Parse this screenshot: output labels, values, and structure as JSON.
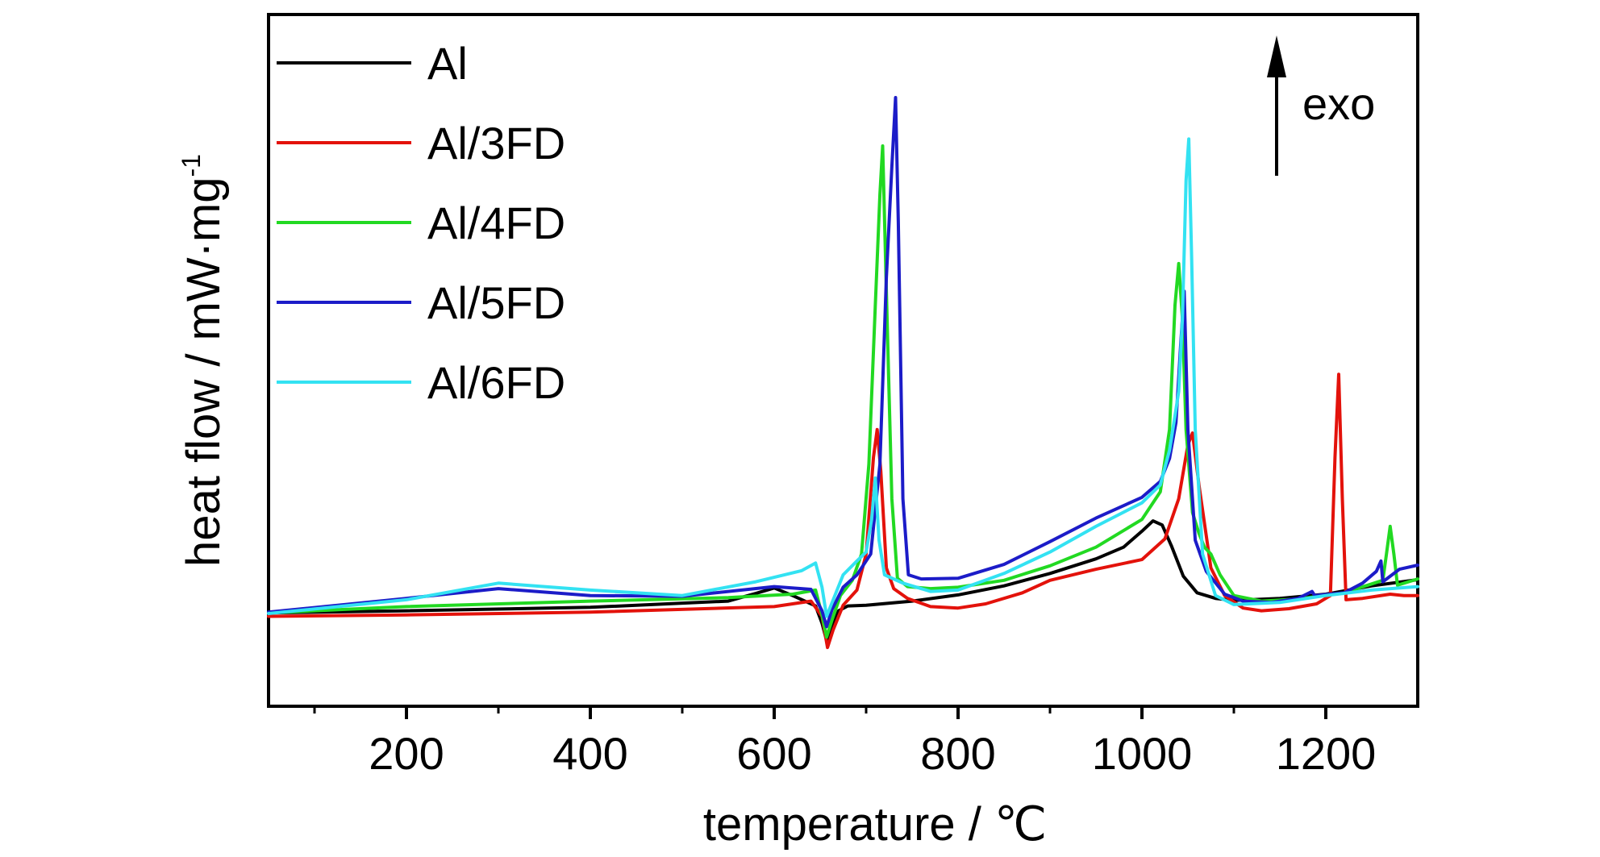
{
  "chart_data": {
    "type": "line",
    "title": "",
    "xlabel": "temperature / ℃",
    "ylabel": "heat flow / mW·mg",
    "ylabel_superscript": "-1",
    "xlim": [
      50,
      1300
    ],
    "ylim": [
      0,
      100
    ],
    "x_ticks": [
      200,
      400,
      600,
      800,
      1000,
      1200
    ],
    "x_tick_labels": [
      "200",
      "400",
      "600",
      "800",
      "1000",
      "1200"
    ],
    "x_minor_ticks": [
      100,
      300,
      500,
      700,
      900,
      1100
    ],
    "y_ticks_visible": false,
    "grid": false,
    "legend_position": "top-left",
    "annotation": {
      "text": "exo",
      "arrow": "up"
    },
    "series": [
      {
        "name": "Al",
        "color": "#000000",
        "points": [
          [
            50,
            13.5
          ],
          [
            200,
            13.8
          ],
          [
            400,
            14.3
          ],
          [
            550,
            15.2
          ],
          [
            580,
            16.3
          ],
          [
            600,
            17.1
          ],
          [
            620,
            16.0
          ],
          [
            645,
            14.5
          ],
          [
            652,
            12.0
          ],
          [
            657,
            9.5
          ],
          [
            662,
            11.0
          ],
          [
            670,
            13.8
          ],
          [
            680,
            14.5
          ],
          [
            700,
            14.6
          ],
          [
            750,
            15.2
          ],
          [
            800,
            16.1
          ],
          [
            850,
            17.4
          ],
          [
            900,
            19.2
          ],
          [
            950,
            21.3
          ],
          [
            980,
            23.0
          ],
          [
            1000,
            25.3
          ],
          [
            1012,
            26.8
          ],
          [
            1022,
            26.2
          ],
          [
            1032,
            23.2
          ],
          [
            1045,
            18.8
          ],
          [
            1060,
            16.4
          ],
          [
            1080,
            15.6
          ],
          [
            1100,
            15.3
          ],
          [
            1150,
            15.6
          ],
          [
            1200,
            16.2
          ],
          [
            1250,
            17.4
          ],
          [
            1300,
            18.3
          ]
        ]
      },
      {
        "name": "Al/3FD",
        "color": "#e3120b",
        "points": [
          [
            50,
            13.0
          ],
          [
            200,
            13.2
          ],
          [
            400,
            13.6
          ],
          [
            600,
            14.4
          ],
          [
            640,
            15.2
          ],
          [
            652,
            13.0
          ],
          [
            658,
            8.5
          ],
          [
            664,
            11.0
          ],
          [
            675,
            14.6
          ],
          [
            690,
            16.8
          ],
          [
            700,
            22.0
          ],
          [
            708,
            36.0
          ],
          [
            712,
            40.0
          ],
          [
            716,
            34.0
          ],
          [
            722,
            20.0
          ],
          [
            730,
            17.0
          ],
          [
            745,
            15.6
          ],
          [
            770,
            14.4
          ],
          [
            800,
            14.2
          ],
          [
            830,
            14.8
          ],
          [
            870,
            16.4
          ],
          [
            900,
            18.2
          ],
          [
            950,
            19.8
          ],
          [
            1000,
            21.2
          ],
          [
            1025,
            24.2
          ],
          [
            1040,
            30.0
          ],
          [
            1050,
            37.8
          ],
          [
            1055,
            39.5
          ],
          [
            1062,
            32.0
          ],
          [
            1075,
            20.0
          ],
          [
            1090,
            16.0
          ],
          [
            1110,
            14.2
          ],
          [
            1130,
            13.8
          ],
          [
            1160,
            14.1
          ],
          [
            1190,
            14.8
          ],
          [
            1205,
            16.0
          ],
          [
            1210,
            36.0
          ],
          [
            1214,
            48.0
          ],
          [
            1218,
            30.0
          ],
          [
            1222,
            15.4
          ],
          [
            1240,
            15.6
          ],
          [
            1270,
            16.2
          ],
          [
            1285,
            16.0
          ],
          [
            1300,
            16.0
          ]
        ]
      },
      {
        "name": "Al/4FD",
        "color": "#22d922",
        "points": [
          [
            50,
            13.5
          ],
          [
            200,
            14.4
          ],
          [
            400,
            15.2
          ],
          [
            550,
            15.7
          ],
          [
            620,
            16.2
          ],
          [
            645,
            16.8
          ],
          [
            652,
            13.2
          ],
          [
            657,
            10.0
          ],
          [
            663,
            12.5
          ],
          [
            672,
            16.0
          ],
          [
            685,
            18.2
          ],
          [
            695,
            22.0
          ],
          [
            703,
            35.0
          ],
          [
            710,
            58.0
          ],
          [
            715,
            74.0
          ],
          [
            718,
            81.0
          ],
          [
            722,
            60.0
          ],
          [
            728,
            30.0
          ],
          [
            734,
            18.5
          ],
          [
            745,
            17.3
          ],
          [
            770,
            17.0
          ],
          [
            800,
            17.2
          ],
          [
            850,
            18.2
          ],
          [
            900,
            20.3
          ],
          [
            950,
            23.0
          ],
          [
            1000,
            27.0
          ],
          [
            1020,
            31.0
          ],
          [
            1030,
            40.0
          ],
          [
            1036,
            58.0
          ],
          [
            1040,
            64.0
          ],
          [
            1044,
            56.0
          ],
          [
            1048,
            40.0
          ],
          [
            1055,
            28.0
          ],
          [
            1062,
            25.0
          ],
          [
            1068,
            23.0
          ],
          [
            1075,
            22.0
          ],
          [
            1085,
            19.0
          ],
          [
            1100,
            16.0
          ],
          [
            1130,
            15.2
          ],
          [
            1170,
            15.5
          ],
          [
            1220,
            16.4
          ],
          [
            1262,
            18.2
          ],
          [
            1266,
            22.0
          ],
          [
            1270,
            26.0
          ],
          [
            1274,
            22.0
          ],
          [
            1278,
            17.5
          ],
          [
            1300,
            18.4
          ]
        ]
      },
      {
        "name": "Al/5FD",
        "color": "#1c1cc8",
        "points": [
          [
            50,
            13.6
          ],
          [
            200,
            15.6
          ],
          [
            300,
            17.0
          ],
          [
            400,
            16.0
          ],
          [
            500,
            15.9
          ],
          [
            600,
            17.3
          ],
          [
            640,
            16.9
          ],
          [
            652,
            13.8
          ],
          [
            657,
            11.5
          ],
          [
            663,
            14.0
          ],
          [
            675,
            17.2
          ],
          [
            690,
            19.0
          ],
          [
            705,
            22.0
          ],
          [
            715,
            35.0
          ],
          [
            722,
            62.0
          ],
          [
            728,
            78.0
          ],
          [
            732,
            88.0
          ],
          [
            735,
            70.0
          ],
          [
            740,
            30.0
          ],
          [
            746,
            19.0
          ],
          [
            760,
            18.4
          ],
          [
            800,
            18.5
          ],
          [
            850,
            20.5
          ],
          [
            900,
            23.8
          ],
          [
            950,
            27.2
          ],
          [
            1000,
            30.2
          ],
          [
            1020,
            32.5
          ],
          [
            1030,
            35.8
          ],
          [
            1037,
            41.0
          ],
          [
            1042,
            52.0
          ],
          [
            1046,
            60.0
          ],
          [
            1050,
            40.0
          ],
          [
            1058,
            24.0
          ],
          [
            1070,
            19.5
          ],
          [
            1090,
            16.2
          ],
          [
            1110,
            15.2
          ],
          [
            1140,
            15.0
          ],
          [
            1170,
            15.6
          ],
          [
            1185,
            16.6
          ],
          [
            1188,
            16.0
          ],
          [
            1220,
            16.4
          ],
          [
            1240,
            17.8
          ],
          [
            1255,
            19.5
          ],
          [
            1260,
            21.0
          ],
          [
            1262,
            18.0
          ],
          [
            1280,
            19.8
          ],
          [
            1300,
            20.4
          ]
        ]
      },
      {
        "name": "Al/6FD",
        "color": "#33e2f2",
        "points": [
          [
            50,
            13.4
          ],
          [
            200,
            15.4
          ],
          [
            300,
            17.8
          ],
          [
            400,
            16.8
          ],
          [
            500,
            16.0
          ],
          [
            580,
            18.0
          ],
          [
            630,
            19.6
          ],
          [
            645,
            20.7
          ],
          [
            652,
            17.2
          ],
          [
            657,
            13.0
          ],
          [
            663,
            15.0
          ],
          [
            675,
            19.0
          ],
          [
            690,
            21.0
          ],
          [
            700,
            22.3
          ],
          [
            706,
            27.0
          ],
          [
            710,
            33.0
          ],
          [
            714,
            24.0
          ],
          [
            720,
            19.0
          ],
          [
            740,
            17.8
          ],
          [
            770,
            16.6
          ],
          [
            800,
            16.8
          ],
          [
            850,
            19.2
          ],
          [
            900,
            22.3
          ],
          [
            950,
            26.0
          ],
          [
            1000,
            29.4
          ],
          [
            1020,
            32.0
          ],
          [
            1030,
            37.0
          ],
          [
            1036,
            42.0
          ],
          [
            1040,
            45.5
          ],
          [
            1044,
            56.0
          ],
          [
            1048,
            76.0
          ],
          [
            1051,
            82.0
          ],
          [
            1054,
            65.0
          ],
          [
            1058,
            40.0
          ],
          [
            1066,
            22.0
          ],
          [
            1080,
            16.0
          ],
          [
            1100,
            14.7
          ],
          [
            1150,
            15.0
          ],
          [
            1200,
            16.0
          ],
          [
            1250,
            16.8
          ],
          [
            1300,
            17.3
          ]
        ]
      }
    ]
  }
}
